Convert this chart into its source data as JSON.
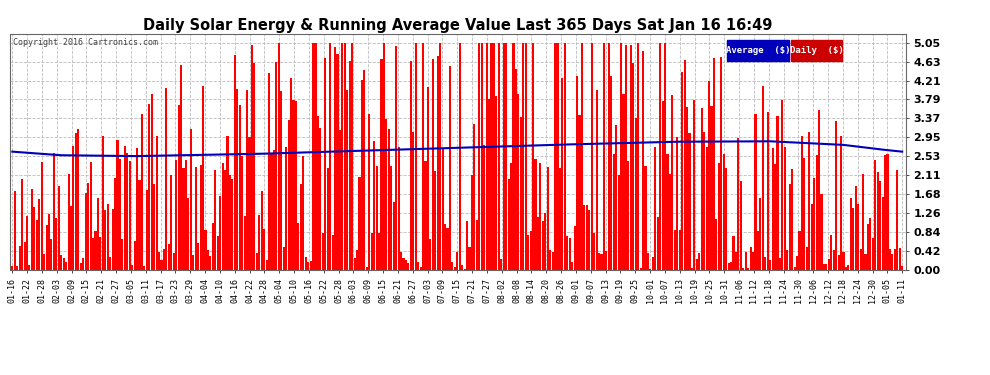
{
  "title": "Daily Solar Energy & Running Average Value Last 365 Days Sat Jan 16 16:49",
  "title_fontsize": 10.5,
  "copyright_text": "Copyright 2016 Cartronics.com",
  "bar_color": "#FF0000",
  "avg_line_color": "#0000BB",
  "background_color": "#FFFFFF",
  "plot_bg_color": "#FFFFFF",
  "grid_color": "#BBBBBB",
  "ylim": [
    0.0,
    5.25
  ],
  "yticks": [
    0.0,
    0.42,
    0.84,
    1.26,
    1.68,
    2.11,
    2.53,
    2.95,
    3.37,
    3.79,
    4.21,
    4.63,
    5.05
  ],
  "legend_avg_label": "Average  ($)",
  "legend_daily_label": "Daily  ($)",
  "legend_avg_color": "#0000BB",
  "legend_daily_color": "#CC0000",
  "x_labels": [
    "01-16",
    "01-22",
    "01-28",
    "02-03",
    "02-09",
    "02-15",
    "02-21",
    "02-27",
    "03-05",
    "03-11",
    "03-17",
    "03-23",
    "03-29",
    "04-04",
    "04-10",
    "04-16",
    "04-22",
    "04-28",
    "05-04",
    "05-10",
    "05-16",
    "05-22",
    "05-28",
    "06-03",
    "06-09",
    "06-15",
    "06-21",
    "06-27",
    "07-03",
    "07-09",
    "07-15",
    "07-21",
    "07-27",
    "08-02",
    "08-08",
    "08-14",
    "08-20",
    "08-26",
    "09-01",
    "09-07",
    "09-13",
    "09-19",
    "09-25",
    "10-01",
    "10-07",
    "10-13",
    "10-19",
    "10-25",
    "10-31",
    "11-06",
    "11-12",
    "11-18",
    "11-24",
    "11-30",
    "12-06",
    "12-12",
    "12-18",
    "12-24",
    "12-30",
    "01-05",
    "01-11"
  ],
  "seed": 42,
  "n_days": 365,
  "running_avg_knots_x": [
    0,
    20,
    50,
    100,
    160,
    220,
    270,
    310,
    340,
    355,
    364
  ],
  "running_avg_knots_y": [
    2.63,
    2.55,
    2.53,
    2.58,
    2.68,
    2.78,
    2.85,
    2.86,
    2.78,
    2.68,
    2.63
  ]
}
